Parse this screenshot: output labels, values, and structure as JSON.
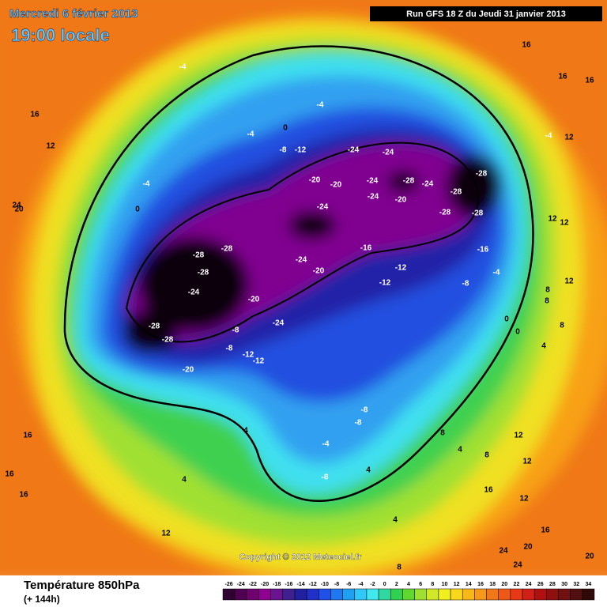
{
  "header": {
    "date": "Mercredi 6 février 2013",
    "time": "19:00 locale",
    "run": "Run GFS 18 Z du Jeudi 31 janvier 2013"
  },
  "copyright": "Copyright © 2012 Meteociel.fr",
  "footer": {
    "title": "Température 850hPa",
    "lead": "(+ 144h)"
  },
  "legend": {
    "ticks": [
      -26,
      -24,
      -22,
      -20,
      -18,
      -16,
      -14,
      -12,
      -10,
      -8,
      -6,
      -4,
      -2,
      0,
      2,
      4,
      6,
      8,
      10,
      12,
      14,
      16,
      18,
      20,
      22,
      24,
      26,
      28,
      30,
      32,
      34
    ],
    "colors": [
      "#300030",
      "#500050",
      "#700070",
      "#900090",
      "#6a1490",
      "#402090",
      "#2020a0",
      "#2030c8",
      "#2050e8",
      "#2078f0",
      "#20a0f0",
      "#30c8f8",
      "#40e8f0",
      "#30d8a0",
      "#30d050",
      "#60d830",
      "#a0e030",
      "#d0e828",
      "#f0f020",
      "#f8d818",
      "#f8b818",
      "#f89818",
      "#f07818",
      "#f05818",
      "#e83818",
      "#d02018",
      "#b01010",
      "#901010",
      "#701010",
      "#501010",
      "#300808"
    ]
  },
  "contour_labels": [
    -28,
    -28,
    -28,
    -24,
    -28,
    -28,
    -20,
    -24,
    -20,
    -24,
    -24,
    -20,
    -20,
    -24,
    -24,
    -24,
    -28,
    -24,
    -20,
    -24,
    -28,
    -28,
    -28,
    -28,
    -16,
    -12,
    -12,
    -16,
    -8,
    -4,
    -8,
    -12,
    -12,
    -8,
    -20,
    -8,
    -8,
    -4,
    -8,
    4,
    4,
    12,
    16,
    16,
    16,
    12,
    16,
    -4,
    -4,
    0,
    -4,
    -8,
    -12,
    0,
    -4,
    16,
    16,
    16,
    12,
    12,
    12,
    12,
    8,
    8,
    8,
    0,
    0,
    4,
    12,
    12,
    16,
    12,
    8,
    8,
    4,
    8,
    24,
    24,
    20,
    20,
    16,
    24,
    20,
    4,
    4,
    -4
  ]
}
